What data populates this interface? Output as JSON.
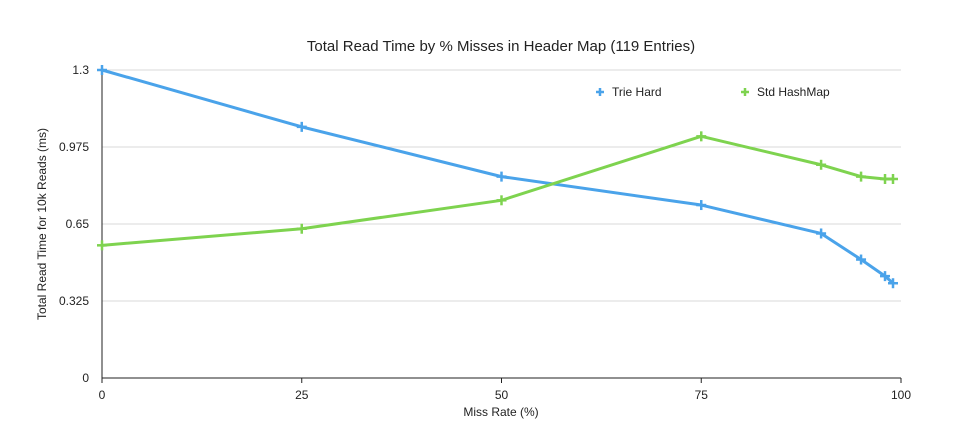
{
  "chart_data": {
    "type": "line",
    "title": "Total Read Time by % Misses in Header Map (119 Entries)",
    "xlabel": "Miss Rate (%)",
    "ylabel": "Total Read Time for 10k Reads (ms)",
    "xlim": [
      0,
      100
    ],
    "ylim": [
      0,
      1.3
    ],
    "x_ticks": [
      "0",
      "25",
      "50",
      "75",
      "100"
    ],
    "y_ticks": [
      "0",
      "0.325",
      "0.65",
      "0.975",
      "1.3"
    ],
    "grid": "horizontal",
    "legend_position": "top-right",
    "series": [
      {
        "name": "Trie Hard",
        "color": "#4aa3ea",
        "x": [
          0,
          25,
          50,
          75,
          90,
          95,
          98,
          99
        ],
        "y": [
          1.3,
          1.06,
          0.85,
          0.73,
          0.61,
          0.5,
          0.43,
          0.4
        ]
      },
      {
        "name": "Std HashMap",
        "color": "#7ed34f",
        "x": [
          0,
          25,
          50,
          75,
          90,
          95,
          98,
          99
        ],
        "y": [
          0.56,
          0.63,
          0.75,
          1.02,
          0.9,
          0.85,
          0.84,
          0.84
        ]
      }
    ]
  }
}
